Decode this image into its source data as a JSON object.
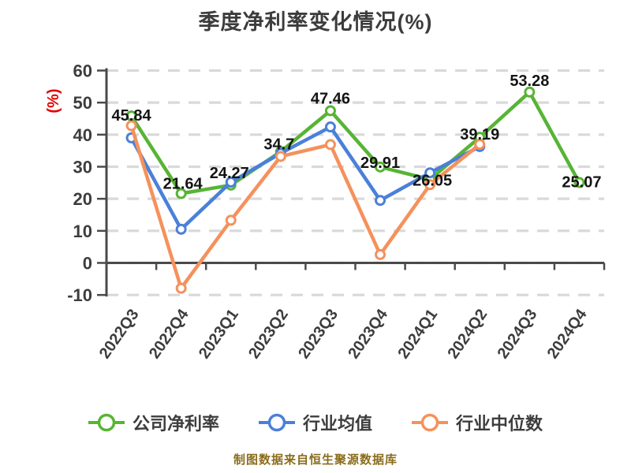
{
  "title": "季度净利率变化情况(%)",
  "footer": "制图数据来自恒生聚源数据库",
  "colors": {
    "title_text": "#3c3c3c",
    "axis_text": "#3d3d3d",
    "axis_line": "#4a4a4a",
    "grid_line": "#d9d9d9",
    "data_label": "#141414",
    "ylabel_text": "#e60000",
    "footer_text": "#8a6c1c",
    "marker_fill": "#ffffff",
    "series_company": "#57b435",
    "series_industry_avg": "#4a80d9",
    "series_industry_median": "#f5915c"
  },
  "chart_data": {
    "type": "line",
    "title": "季度净利率变化情况(%)",
    "xlabel": "",
    "ylabel": "(%)",
    "ylim": [
      -10,
      60
    ],
    "ytick_step": 10,
    "yticks": [
      -10,
      0,
      10,
      20,
      30,
      40,
      50,
      60
    ],
    "grid": "horizontal dashed",
    "legend_position": "bottom",
    "categories": [
      "2022Q3",
      "2022Q4",
      "2023Q1",
      "2023Q2",
      "2023Q3",
      "2023Q4",
      "2024Q1",
      "2024Q2",
      "2024Q3",
      "2024Q4"
    ],
    "series": [
      {
        "id": "company-net-margin",
        "name": "公司净利率",
        "color": "#57b435",
        "labeled": true,
        "values": [
          45.84,
          21.64,
          24.27,
          34.7,
          47.46,
          29.91,
          26.05,
          39.19,
          53.28,
          25.07
        ],
        "point_labels": [
          "45.84",
          "21.64",
          "24.27",
          "34.7",
          "47.46",
          "29.91",
          "26.05",
          "39.19",
          "53.28",
          "25.07"
        ]
      },
      {
        "id": "industry-mean",
        "name": "行业均值",
        "color": "#4a80d9",
        "labeled": false,
        "values": [
          39,
          10.5,
          25.2,
          34.2,
          42.4,
          19.5,
          28.1,
          36.3,
          null,
          null
        ]
      },
      {
        "id": "industry-median",
        "name": "行业中位数",
        "color": "#f5915c",
        "labeled": false,
        "values": [
          42.8,
          -7.9,
          13.3,
          33.2,
          36.9,
          2.6,
          24.4,
          37.0,
          null,
          null
        ]
      }
    ]
  }
}
